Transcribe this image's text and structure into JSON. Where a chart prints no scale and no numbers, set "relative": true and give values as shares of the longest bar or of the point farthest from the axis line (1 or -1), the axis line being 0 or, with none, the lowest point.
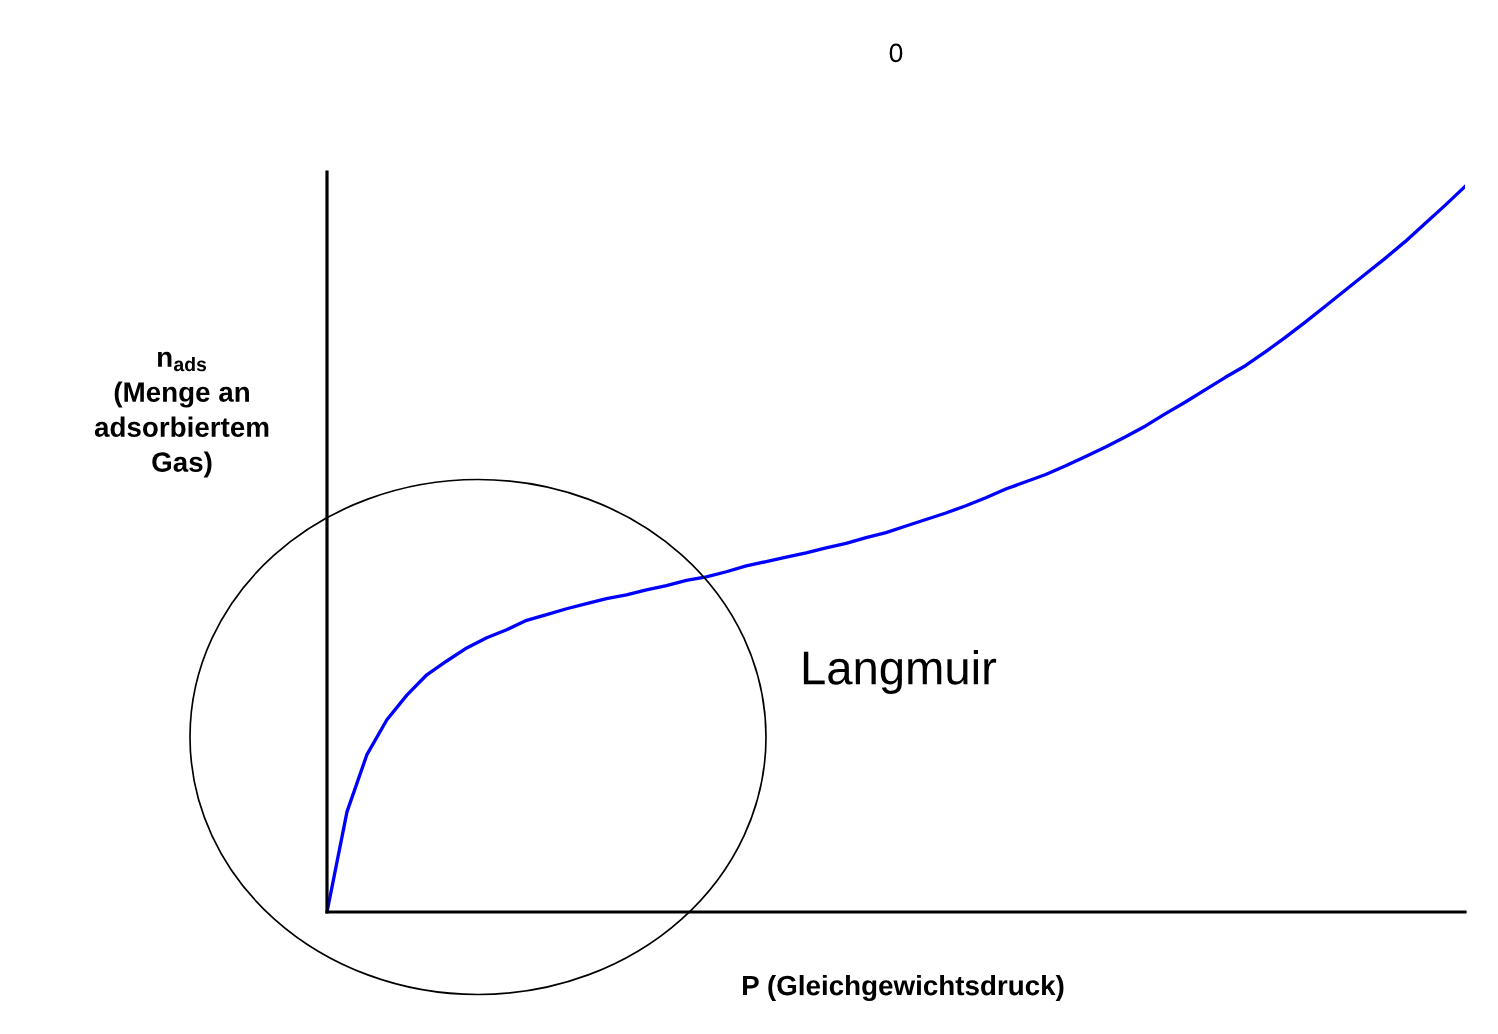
{
  "chart_data": {
    "type": "line",
    "title": "0",
    "xlabel": "P (Gleichgewichtsdruck)",
    "ylabel": "n$_{ads}$\n(Menge an\nadsorbiertem\nGas)",
    "annotations": [
      "Langmuir"
    ],
    "relative": true,
    "categories": [
      null,
      null,
      null,
      null,
      null,
      null,
      null,
      null,
      null,
      null,
      null,
      null,
      null,
      null,
      null,
      null,
      null,
      null,
      null,
      null,
      null,
      null,
      null,
      null,
      null,
      null,
      null,
      null,
      null,
      null,
      null,
      null,
      null,
      null,
      null,
      null,
      null,
      null,
      null,
      null,
      null,
      null,
      null,
      null,
      null,
      null,
      null,
      null,
      null,
      null,
      null,
      null,
      null,
      null,
      null,
      null,
      null,
      null
    ],
    "series": [
      {
        "color": "#0000ff",
        "values": [
          0,
          0.138,
          0.217,
          0.265,
          0.299,
          0.327,
          0.346,
          0.364,
          0.378,
          0.389,
          0.402,
          0.41,
          0.418,
          0.425,
          0.432,
          0.437,
          0.444,
          0.45,
          0.457,
          0.462,
          0.469,
          0.477,
          0.483,
          0.489,
          0.495,
          0.502,
          0.508,
          0.516,
          0.523,
          0.532,
          0.541,
          0.55,
          0.56,
          0.571,
          0.583,
          0.593,
          0.603,
          0.615,
          0.628,
          0.641,
          0.655,
          0.67,
          0.687,
          0.703,
          0.72,
          0.737,
          0.753,
          0.772,
          0.792,
          0.813,
          0.835,
          0.857,
          0.879,
          0.901,
          0.924,
          0.949,
          0.974,
          1.0
        ]
      }
    ],
    "marker": "none",
    "line_style": "solid",
    "grid": false
  }
}
